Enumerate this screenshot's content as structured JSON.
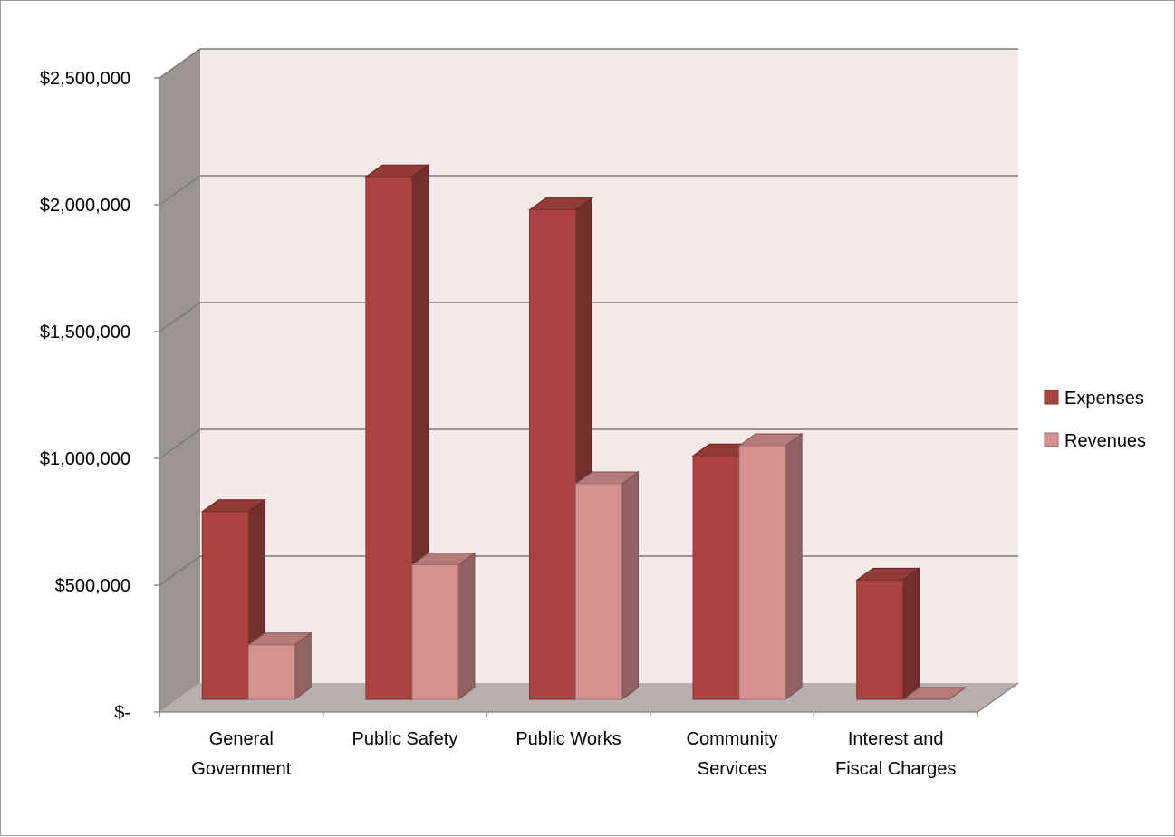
{
  "chart_data": {
    "type": "bar",
    "style": "3d-clustered-column",
    "categories": [
      [
        "General",
        "Government"
      ],
      [
        "Public Safety"
      ],
      [
        "Public Works"
      ],
      [
        "Community",
        "Services"
      ],
      [
        "Interest and",
        "Fiscal Charges"
      ]
    ],
    "series": [
      {
        "name": "Expenses",
        "color": "#ab4440",
        "values": [
          740000,
          2060000,
          1930000,
          960000,
          470000
        ]
      },
      {
        "name": "Revenues",
        "color": "#d49190",
        "values": [
          215000,
          530000,
          850000,
          1000000,
          0
        ]
      }
    ],
    "yticks": [
      0,
      500000,
      1000000,
      1500000,
      2000000,
      2500000
    ],
    "ytick_labels": [
      "$-",
      "$500,000",
      "$1,000,000",
      "$1,500,000",
      "$2,000,000",
      "$2,500,000"
    ],
    "ylim": [
      0,
      2500000
    ],
    "grid": true,
    "legend_position": "right",
    "colors": {
      "back_wall": "#f5e8e8",
      "side_wall": "#9c9393",
      "floor": "#b8aeae",
      "gridline": "#7a7a7a"
    }
  }
}
